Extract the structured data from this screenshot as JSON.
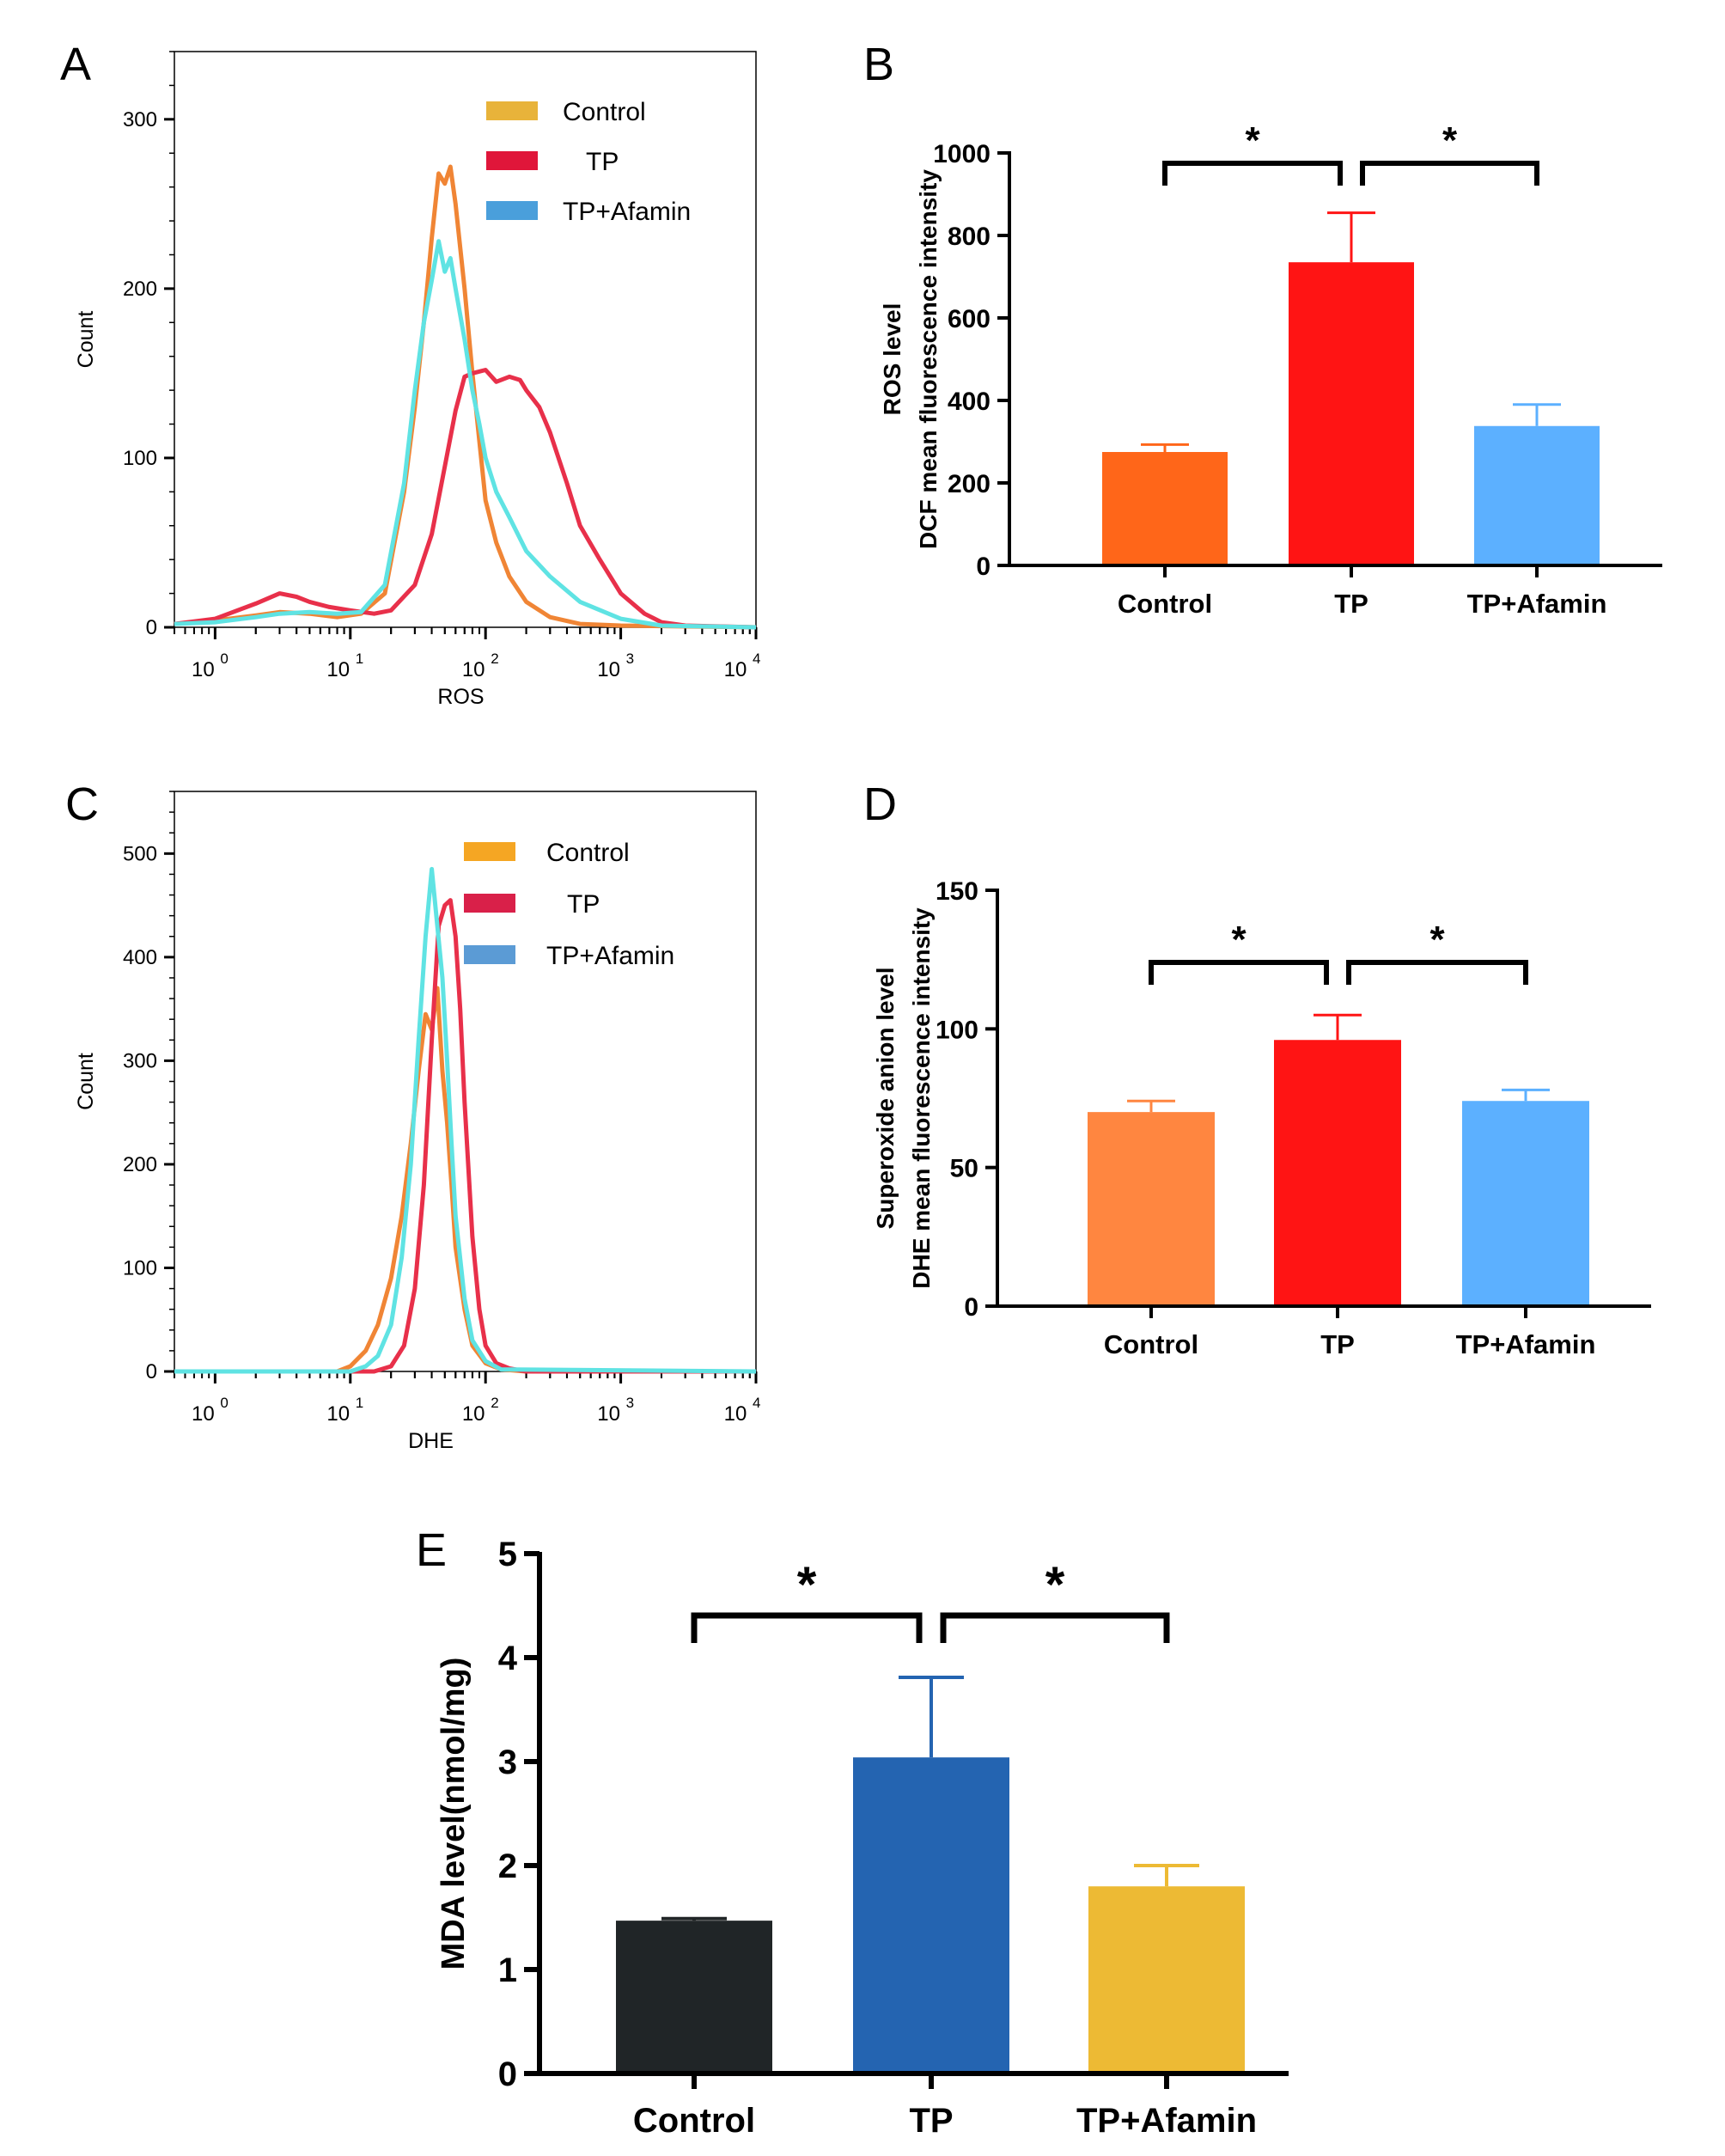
{
  "chart_data": [
    {
      "panel": "A",
      "type": "line",
      "xscale": "log",
      "xlabel": "ROS",
      "ylabel": "Count",
      "xlim": [
        0.5,
        10000
      ],
      "ylim": [
        0,
        340
      ],
      "yticks": [
        0,
        100,
        200,
        300
      ],
      "xtick_exponents": [
        "0",
        "1",
        "2",
        "3",
        "4"
      ],
      "xtick_base": "10",
      "legend": [
        "Control",
        "TP",
        "TP+Afamin"
      ],
      "legend_colors": [
        "#E8B33A",
        "#E0163A",
        "#4A9FDB"
      ],
      "series": [
        {
          "name": "Control",
          "color": "#F08535",
          "x": [
            0.5,
            1,
            2,
            3,
            5,
            8,
            12,
            18,
            25,
            30,
            35,
            40,
            45,
            50,
            55,
            60,
            70,
            80,
            90,
            100,
            120,
            150,
            200,
            300,
            500,
            1000,
            10000
          ],
          "y": [
            2,
            4,
            7,
            9,
            8,
            6,
            8,
            20,
            80,
            130,
            180,
            230,
            268,
            262,
            272,
            250,
            200,
            150,
            110,
            75,
            50,
            30,
            15,
            6,
            2,
            1,
            0
          ]
        },
        {
          "name": "TP",
          "color": "#E8304A",
          "x": [
            0.5,
            1,
            2,
            3,
            4,
            5,
            7,
            10,
            15,
            20,
            30,
            40,
            50,
            60,
            70,
            80,
            100,
            120,
            150,
            180,
            200,
            250,
            300,
            400,
            500,
            700,
            1000,
            1500,
            2000,
            3000,
            10000
          ],
          "y": [
            2,
            5,
            14,
            20,
            18,
            15,
            12,
            10,
            8,
            10,
            25,
            55,
            95,
            128,
            148,
            150,
            152,
            145,
            148,
            146,
            140,
            130,
            115,
            85,
            60,
            40,
            20,
            8,
            3,
            1,
            0
          ]
        },
        {
          "name": "TP+Afamin",
          "color": "#5FE3E3",
          "x": [
            0.5,
            1,
            2,
            3,
            5,
            8,
            12,
            18,
            25,
            30,
            35,
            40,
            45,
            50,
            55,
            60,
            70,
            80,
            90,
            100,
            120,
            150,
            200,
            300,
            500,
            1000,
            2000,
            10000
          ],
          "y": [
            2,
            3,
            6,
            8,
            9,
            8,
            9,
            25,
            85,
            140,
            180,
            205,
            228,
            210,
            218,
            200,
            170,
            140,
            120,
            100,
            80,
            65,
            45,
            30,
            15,
            5,
            1,
            0
          ]
        }
      ]
    },
    {
      "panel": "B",
      "type": "bar",
      "categories": [
        "Control",
        "TP",
        "TP+Afamin"
      ],
      "values": [
        275,
        735,
        338
      ],
      "errors": [
        18,
        120,
        52
      ],
      "colors": [
        "#FF6619",
        "#FF1414",
        "#5CB0FF"
      ],
      "ylim": [
        0,
        1000
      ],
      "yticks": [
        0,
        200,
        400,
        600,
        800,
        1000
      ],
      "ylabel_line1": "ROS level",
      "ylabel_line2": "DCF mean fluorescence intensity",
      "significance": [
        {
          "from": 0,
          "to": 1,
          "label": "*"
        },
        {
          "from": 1,
          "to": 2,
          "label": "*"
        }
      ]
    },
    {
      "panel": "C",
      "type": "line",
      "xscale": "log",
      "xlabel": "DHE",
      "ylabel": "Count",
      "xlim": [
        0.5,
        10000
      ],
      "ylim": [
        0,
        560
      ],
      "yticks": [
        0,
        100,
        200,
        300,
        400,
        500
      ],
      "xtick_exponents": [
        "0",
        "1",
        "2",
        "3",
        "4"
      ],
      "xtick_base": "10",
      "legend": [
        "Control",
        "TP",
        "TP+Afamin"
      ],
      "legend_colors": [
        "#F5A623",
        "#D92049",
        "#5B9BD5"
      ],
      "series": [
        {
          "name": "Control",
          "color": "#F08535",
          "x": [
            0.5,
            8,
            10,
            13,
            16,
            20,
            24,
            28,
            32,
            36,
            40,
            44,
            48,
            52,
            56,
            60,
            70,
            80,
            100,
            130,
            200,
            10000
          ],
          "y": [
            0,
            0,
            5,
            20,
            45,
            90,
            150,
            220,
            290,
            345,
            330,
            370,
            290,
            240,
            180,
            120,
            60,
            25,
            8,
            2,
            0,
            0
          ]
        },
        {
          "name": "TP",
          "color": "#E8304A",
          "x": [
            0.5,
            15,
            20,
            25,
            30,
            35,
            40,
            45,
            50,
            55,
            60,
            65,
            70,
            80,
            90,
            100,
            120,
            150,
            200,
            10000
          ],
          "y": [
            0,
            0,
            5,
            25,
            80,
            180,
            320,
            430,
            450,
            455,
            420,
            350,
            260,
            130,
            60,
            25,
            8,
            3,
            0,
            0
          ]
        },
        {
          "name": "TP+Afamin",
          "color": "#5FE3E3",
          "x": [
            0.5,
            10,
            13,
            16,
            20,
            24,
            28,
            32,
            36,
            40,
            44,
            48,
            52,
            56,
            60,
            70,
            80,
            100,
            130,
            10000
          ],
          "y": [
            0,
            0,
            5,
            15,
            45,
            110,
            200,
            320,
            420,
            485,
            430,
            380,
            300,
            220,
            150,
            70,
            30,
            10,
            2,
            0
          ]
        }
      ]
    },
    {
      "panel": "D",
      "type": "bar",
      "categories": [
        "Control",
        "TP",
        "TP+Afamin"
      ],
      "values": [
        70,
        96,
        74
      ],
      "errors": [
        4,
        9,
        4
      ],
      "colors": [
        "#FF8640",
        "#FF1414",
        "#5CB0FF"
      ],
      "ylim": [
        0,
        150
      ],
      "yticks": [
        0,
        50,
        100,
        150
      ],
      "ylabel_line1": "Superoxide anion level",
      "ylabel_line2": "DHE mean fluorescence intensity",
      "significance": [
        {
          "from": 0,
          "to": 1,
          "label": "*"
        },
        {
          "from": 1,
          "to": 2,
          "label": "*"
        }
      ]
    },
    {
      "panel": "E",
      "type": "bar",
      "categories": [
        "Control",
        "TP",
        "TP+Afamin"
      ],
      "values": [
        1.47,
        3.04,
        1.8
      ],
      "errors": [
        0.02,
        0.77,
        0.2
      ],
      "colors": [
        "#202527",
        "#2464B1",
        "#EDBA34"
      ],
      "error_colors": [
        "#202527",
        "#2464B1",
        "#EDBA34"
      ],
      "ylim": [
        0,
        5
      ],
      "yticks": [
        0,
        1,
        2,
        3,
        4,
        5
      ],
      "ylabel": "MDA level(nmol/mg)",
      "significance": [
        {
          "from": 0,
          "to": 1,
          "label": "*"
        },
        {
          "from": 1,
          "to": 2,
          "label": "*"
        }
      ]
    }
  ]
}
